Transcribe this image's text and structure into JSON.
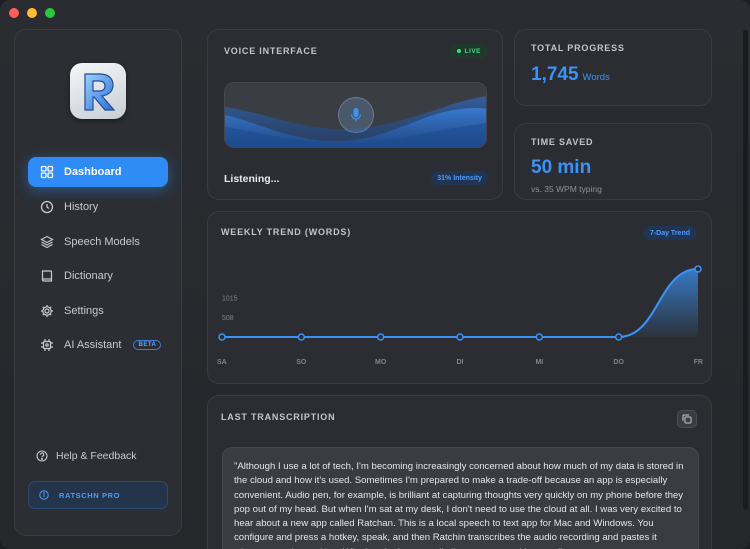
{
  "sidebar": {
    "items": [
      {
        "label": "Dashboard",
        "icon": "grid-icon",
        "active": true
      },
      {
        "label": "History",
        "icon": "clock-icon"
      },
      {
        "label": "Speech Models",
        "icon": "layers-icon"
      },
      {
        "label": "Dictionary",
        "icon": "book-icon"
      },
      {
        "label": "Settings",
        "icon": "gear-icon"
      },
      {
        "label": "AI Assistant",
        "icon": "chip-icon",
        "badge": "BETA"
      }
    ],
    "help_label": "Help & Feedback",
    "pro_label": "RATSCHN PRO"
  },
  "voice": {
    "title": "VOICE INTERFACE",
    "live_label": "LIVE",
    "status": "Listening...",
    "intensity": "31% Intensity"
  },
  "progress": {
    "title": "TOTAL PROGRESS",
    "value": "1,745",
    "unit": "Words"
  },
  "saved": {
    "title": "TIME SAVED",
    "value": "50 min",
    "sub": "vs. 35 WPM typing"
  },
  "trend": {
    "title": "WEEKLY TREND (WORDS)",
    "badge": "7-Day Trend"
  },
  "chart_data": {
    "type": "area",
    "categories": [
      "SA",
      "SO",
      "MO",
      "DI",
      "MI",
      "DO",
      "FR"
    ],
    "values": [
      0,
      0,
      0,
      0,
      0,
      0,
      1745
    ],
    "yticks": [
      508,
      1015
    ],
    "ylim": [
      0,
      1745
    ],
    "grid": false,
    "color": "#3b93f7"
  },
  "last": {
    "title": "LAST TRANSCRIPTION",
    "text": "\"Although I use a lot of tech, I'm becoming increasingly concerned about how much of my data is stored in the cloud and how it's used. Sometimes I'm prepared to make a trade-off because an app is especially convenient. Audio pen, for example, is brilliant at capturing thoughts very quickly on my phone before they pop out of my head. But when I'm sat at my desk, I don't need to use the cloud at all. I was very excited to hear about a new app called Ratchan. This is a local speech to text app for Mac and Windows. You configure and press a hotkey, speak, and then Ratchin transcribes the audio recording and pastes it wherever you're working. Whether that's an email client or a note taking app.\""
  },
  "colors": {
    "accent": "#2f8cf7",
    "live": "#3ddc84"
  }
}
